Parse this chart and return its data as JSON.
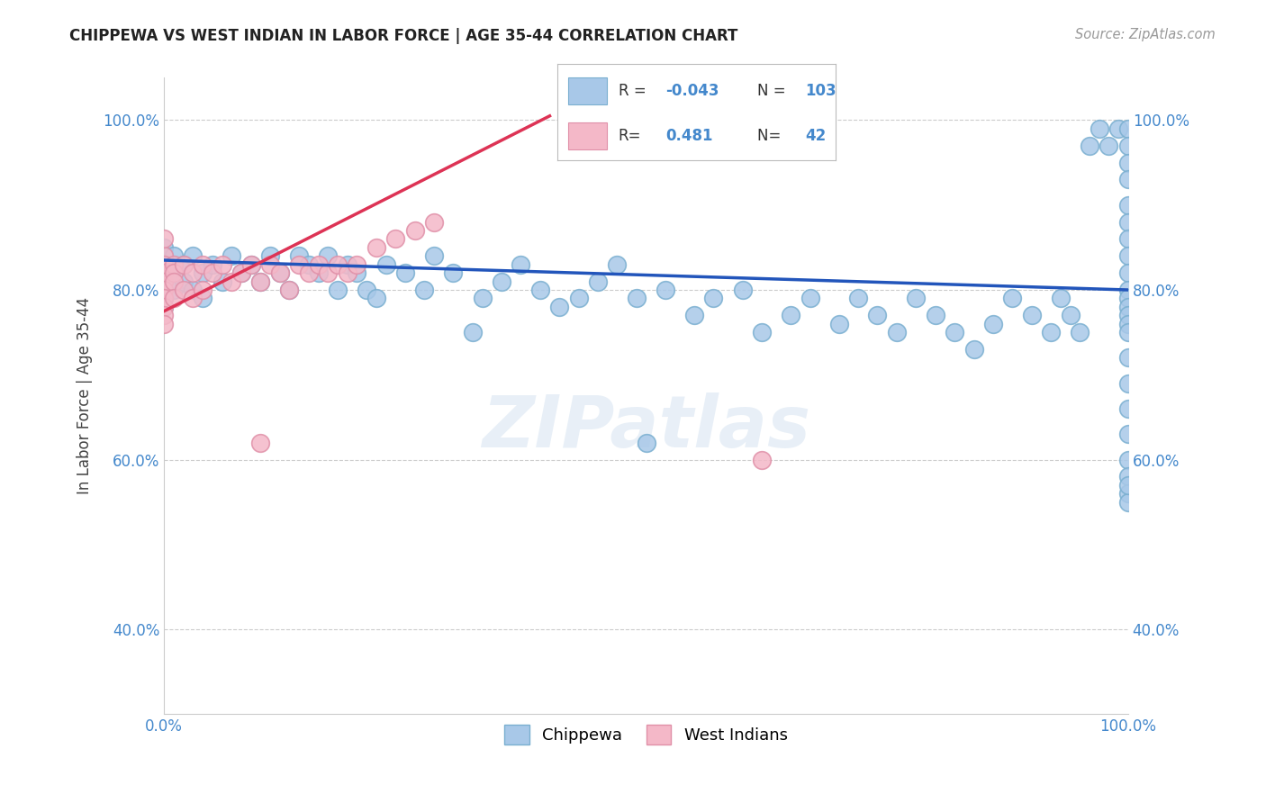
{
  "title": "CHIPPEWA VS WEST INDIAN IN LABOR FORCE | AGE 35-44 CORRELATION CHART",
  "source": "Source: ZipAtlas.com",
  "ylabel": "In Labor Force | Age 35-44",
  "xlim": [
    0.0,
    1.0
  ],
  "ylim": [
    0.3,
    1.05
  ],
  "yticks": [
    0.4,
    0.6,
    0.8,
    1.0
  ],
  "ytick_labels": [
    "40.0%",
    "60.0%",
    "80.0%",
    "100.0%"
  ],
  "chippewa_color": "#a8c8e8",
  "chippewa_edge": "#7aafd0",
  "west_indian_color": "#f4b8c8",
  "west_indian_edge": "#e090a8",
  "trend_blue": "#2255bb",
  "trend_pink": "#dd3355",
  "background_color": "#ffffff",
  "grid_color": "#cccccc",
  "tick_color": "#4488cc",
  "title_color": "#222222",
  "ylabel_color": "#444444",
  "legend_r_color": "#4488cc",
  "legend_label_color": "#333333",
  "chippewa_x": [
    0.0,
    0.0,
    0.0,
    0.0,
    0.0,
    0.0,
    0.0,
    0.0,
    0.0,
    0.0,
    0.01,
    0.01,
    0.01,
    0.02,
    0.02,
    0.03,
    0.03,
    0.04,
    0.04,
    0.05,
    0.06,
    0.07,
    0.08,
    0.09,
    0.1,
    0.11,
    0.12,
    0.13,
    0.14,
    0.15,
    0.16,
    0.17,
    0.18,
    0.19,
    0.2,
    0.21,
    0.22,
    0.23,
    0.25,
    0.27,
    0.28,
    0.3,
    0.32,
    0.33,
    0.35,
    0.37,
    0.39,
    0.41,
    0.43,
    0.45,
    0.47,
    0.49,
    0.5,
    0.52,
    0.55,
    0.57,
    0.6,
    0.62,
    0.65,
    0.67,
    0.7,
    0.72,
    0.74,
    0.76,
    0.78,
    0.8,
    0.82,
    0.84,
    0.86,
    0.88,
    0.9,
    0.92,
    0.93,
    0.94,
    0.95,
    0.96,
    0.97,
    0.98,
    0.99,
    1.0,
    1.0,
    1.0,
    1.0,
    1.0,
    1.0,
    1.0,
    1.0,
    1.0,
    1.0,
    1.0,
    1.0,
    1.0,
    1.0,
    1.0,
    1.0,
    1.0,
    1.0,
    1.0,
    1.0,
    1.0,
    1.0,
    1.0,
    1.0
  ],
  "chippewa_y": [
    0.85,
    0.84,
    0.83,
    0.83,
    0.82,
    0.82,
    0.81,
    0.8,
    0.79,
    0.78,
    0.84,
    0.82,
    0.8,
    0.83,
    0.81,
    0.84,
    0.8,
    0.82,
    0.79,
    0.83,
    0.81,
    0.84,
    0.82,
    0.83,
    0.81,
    0.84,
    0.82,
    0.8,
    0.84,
    0.83,
    0.82,
    0.84,
    0.8,
    0.83,
    0.82,
    0.8,
    0.79,
    0.83,
    0.82,
    0.8,
    0.84,
    0.82,
    0.75,
    0.79,
    0.81,
    0.83,
    0.8,
    0.78,
    0.79,
    0.81,
    0.83,
    0.79,
    0.62,
    0.8,
    0.77,
    0.79,
    0.8,
    0.75,
    0.77,
    0.79,
    0.76,
    0.79,
    0.77,
    0.75,
    0.79,
    0.77,
    0.75,
    0.73,
    0.76,
    0.79,
    0.77,
    0.75,
    0.79,
    0.77,
    0.75,
    0.97,
    0.99,
    0.97,
    0.99,
    0.99,
    0.97,
    0.95,
    0.93,
    0.9,
    0.88,
    0.86,
    0.84,
    0.82,
    0.8,
    0.79,
    0.78,
    0.77,
    0.76,
    0.75,
    0.72,
    0.69,
    0.66,
    0.63,
    0.6,
    0.58,
    0.56,
    0.55,
    0.57
  ],
  "west_indian_x": [
    0.0,
    0.0,
    0.0,
    0.0,
    0.0,
    0.0,
    0.0,
    0.0,
    0.0,
    0.0,
    0.01,
    0.01,
    0.01,
    0.01,
    0.02,
    0.02,
    0.03,
    0.03,
    0.04,
    0.04,
    0.05,
    0.06,
    0.07,
    0.08,
    0.09,
    0.1,
    0.11,
    0.12,
    0.13,
    0.14,
    0.15,
    0.16,
    0.17,
    0.18,
    0.19,
    0.2,
    0.22,
    0.24,
    0.26,
    0.28,
    0.1,
    0.62
  ],
  "west_indian_y": [
    0.84,
    0.83,
    0.82,
    0.81,
    0.8,
    0.79,
    0.78,
    0.77,
    0.76,
    0.86,
    0.83,
    0.82,
    0.81,
    0.79,
    0.83,
    0.8,
    0.82,
    0.79,
    0.83,
    0.8,
    0.82,
    0.83,
    0.81,
    0.82,
    0.83,
    0.81,
    0.83,
    0.82,
    0.8,
    0.83,
    0.82,
    0.83,
    0.82,
    0.83,
    0.82,
    0.83,
    0.85,
    0.86,
    0.87,
    0.88,
    0.62,
    0.6
  ],
  "trend_blue_x0": 0.0,
  "trend_blue_x1": 1.0,
  "trend_blue_y0": 0.835,
  "trend_blue_y1": 0.8,
  "trend_pink_x0": 0.0,
  "trend_pink_x1": 0.4,
  "trend_pink_y0": 0.775,
  "trend_pink_y1": 1.005
}
